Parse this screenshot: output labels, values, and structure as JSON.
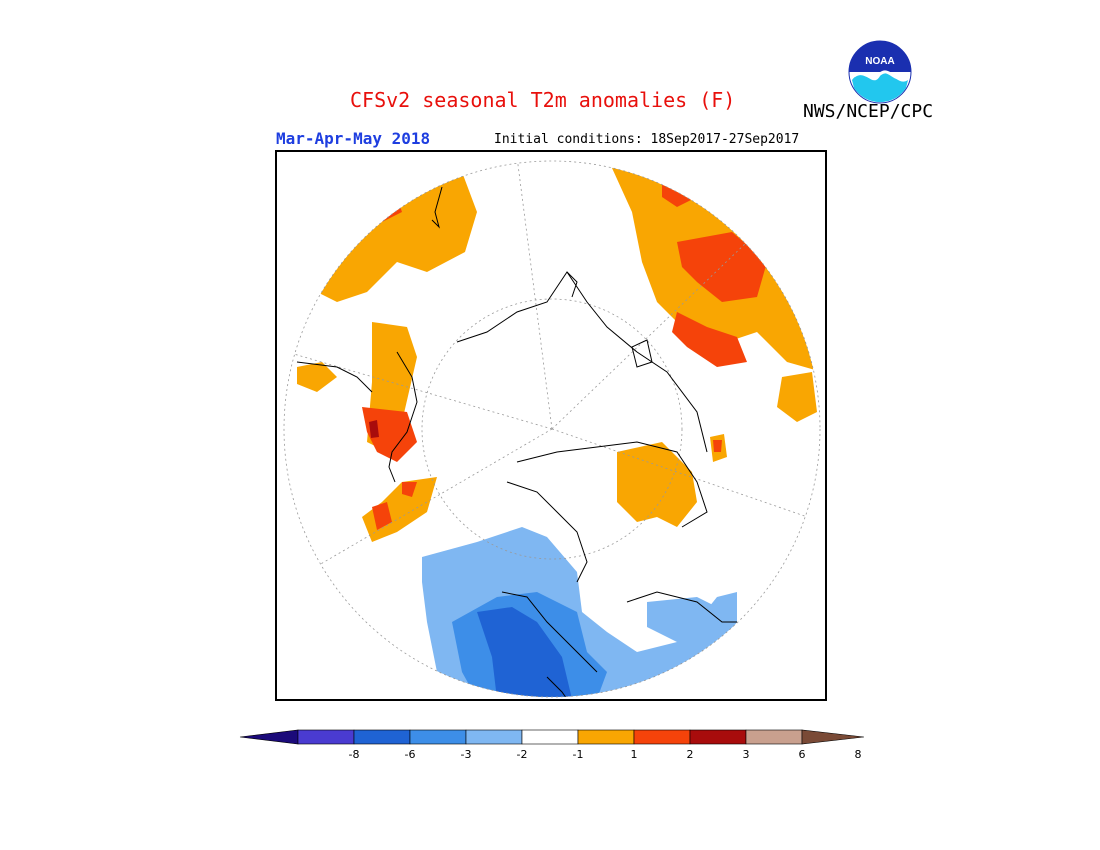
{
  "title": "CFSv2 seasonal T2m anomalies (F)",
  "org": "NWS/NCEP/CPC",
  "season": "Mar-Apr-May 2018",
  "init_conditions": "Initial conditions: 18Sep2017-27Sep2017",
  "logo": {
    "text": "NOAA",
    "icon": "noaa-logo"
  },
  "colorbar": {
    "ticks": [
      "-8",
      "-6",
      "-3",
      "-2",
      "-1",
      "1",
      "2",
      "3",
      "6",
      "8"
    ],
    "colors": [
      "#1b0a7a",
      "#4a3bd1",
      "#1f63d4",
      "#3d8ee8",
      "#7fb7f2",
      "#ffffff",
      "#f9a602",
      "#f5430a",
      "#a80c0c",
      "#c9a08e",
      "#7a4a36"
    ]
  },
  "map": {
    "projection": "north-polar-stereographic",
    "palette": {
      "warm1": "#f9a602",
      "warm2": "#f5430a",
      "warm3": "#a80c0c",
      "cool1": "#7fb7f2",
      "cool2": "#3d8ee8",
      "cool3": "#1f63d4"
    }
  }
}
